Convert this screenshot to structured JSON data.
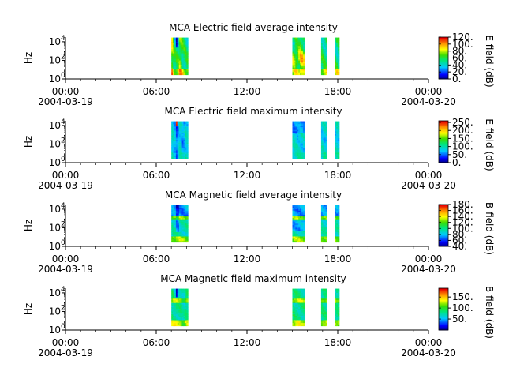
{
  "figure": {
    "date_start": "2004-03-19",
    "date_end": "2004-03-20",
    "ylabel": "Hz"
  },
  "chart_data": [
    {
      "type": "heatmap",
      "title": "MCA  Electric field average intensity",
      "ylabel": "Hz",
      "ytick_labels": [
        "10^0",
        "10^2",
        "10^4"
      ],
      "yticks_exp": [
        0,
        2,
        4
      ],
      "ylim_exp": [
        0,
        4.5
      ],
      "xlim_hours": [
        0,
        24
      ],
      "xtick_labels": [
        "00:00",
        "06:00",
        "12:00",
        "18:00",
        "00:00"
      ],
      "xtick_dates": [
        "2004-03-19",
        "",
        "",
        "",
        "2004-03-20"
      ],
      "colorbar": {
        "label": "E field (dB)",
        "min": 0,
        "max": 120,
        "tick_labels": [
          "0.",
          "20.",
          "40.",
          "60.",
          "80.",
          "100.",
          "120."
        ],
        "tick_values": [
          0,
          20,
          40,
          60,
          80,
          100,
          120
        ]
      },
      "data_intervals_hours": [
        [
          7.0,
          8.1
        ],
        [
          15.0,
          15.8
        ],
        [
          16.9,
          17.3
        ],
        [
          17.8,
          18.1
        ]
      ],
      "colormap": "rainbow",
      "intensity_profile": "average_e"
    },
    {
      "type": "heatmap",
      "title": "MCA  Electric field maximum intensity",
      "ylabel": "Hz",
      "ytick_labels": [
        "10^0",
        "10^2",
        "10^4"
      ],
      "yticks_exp": [
        0,
        2,
        4
      ],
      "ylim_exp": [
        0,
        4.5
      ],
      "xlim_hours": [
        0,
        24
      ],
      "xtick_labels": [
        "00:00",
        "06:00",
        "12:00",
        "18:00",
        "00:00"
      ],
      "xtick_dates": [
        "2004-03-19",
        "",
        "",
        "",
        "2004-03-20"
      ],
      "colorbar": {
        "label": "E field (dB)",
        "min": 0,
        "max": 260,
        "tick_labels": [
          "0.",
          "50.",
          "100.",
          "150.",
          "200.",
          "250."
        ],
        "tick_values": [
          0,
          50,
          100,
          150,
          200,
          250
        ]
      },
      "data_intervals_hours": [
        [
          7.0,
          8.1
        ],
        [
          15.0,
          15.8
        ],
        [
          16.9,
          17.3
        ],
        [
          17.8,
          18.1
        ]
      ],
      "colormap": "rainbow",
      "intensity_profile": "max_e"
    },
    {
      "type": "heatmap",
      "title": "MCA  Magnetic field average intensity",
      "ylabel": "Hz",
      "ytick_labels": [
        "10^0",
        "10^2",
        "10^4"
      ],
      "yticks_exp": [
        0,
        2,
        4
      ],
      "ylim_exp": [
        0,
        4.5
      ],
      "xlim_hours": [
        0,
        24
      ],
      "xtick_labels": [
        "00:00",
        "06:00",
        "12:00",
        "18:00",
        "00:00"
      ],
      "xtick_dates": [
        "2004-03-19",
        "",
        "",
        "",
        "2004-03-20"
      ],
      "colorbar": {
        "label": "B field (dB)",
        "min": 40,
        "max": 180,
        "tick_labels": [
          "40.",
          "60.",
          "80.",
          "100.",
          "120.",
          "140.",
          "160.",
          "180."
        ],
        "tick_values": [
          40,
          60,
          80,
          100,
          120,
          140,
          160,
          180
        ]
      },
      "data_intervals_hours": [
        [
          7.0,
          8.1
        ],
        [
          15.0,
          15.8
        ],
        [
          16.9,
          17.3
        ],
        [
          17.8,
          18.1
        ]
      ],
      "colormap": "rainbow",
      "intensity_profile": "average_b"
    },
    {
      "type": "heatmap",
      "title": "MCA  Magnetic field maximum intensity",
      "ylabel": "Hz",
      "ytick_labels": [
        "10^0",
        "10^2",
        "10^4"
      ],
      "yticks_exp": [
        0,
        2,
        4
      ],
      "ylim_exp": [
        0,
        4.5
      ],
      "xlim_hours": [
        0,
        24
      ],
      "xtick_labels": [
        "00:00",
        "06:00",
        "12:00",
        "18:00",
        "00:00"
      ],
      "xtick_dates": [
        "2004-03-19",
        "",
        "",
        "",
        "2004-03-20"
      ],
      "colorbar": {
        "label": "B field (dB)",
        "min": 0,
        "max": 190,
        "tick_labels": [
          "50.",
          "100.",
          "150."
        ],
        "tick_values": [
          50,
          100,
          150
        ]
      },
      "data_intervals_hours": [
        [
          7.0,
          8.1
        ],
        [
          15.0,
          15.8
        ],
        [
          16.9,
          17.3
        ],
        [
          17.8,
          18.1
        ]
      ],
      "colormap": "rainbow",
      "intensity_profile": "max_b"
    }
  ]
}
